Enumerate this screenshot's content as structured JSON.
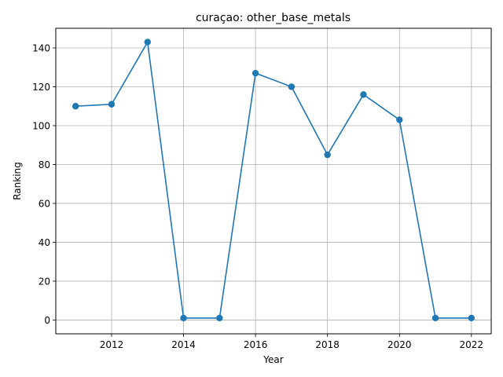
{
  "chart_data": {
    "type": "line",
    "title": "curaçao: other_base_metals",
    "xlabel": "Year",
    "ylabel": "Ranking",
    "x": [
      2011,
      2012,
      2013,
      2014,
      2015,
      2016,
      2017,
      2018,
      2019,
      2020,
      2021,
      2022
    ],
    "series": [
      {
        "values": [
          110,
          111,
          143,
          1,
          1,
          127,
          120,
          85,
          116,
          103,
          1,
          1
        ]
      }
    ],
    "xlim": [
      2010.45,
      2022.55
    ],
    "ylim": [
      -7.1,
      150.1
    ],
    "xticks": [
      2012,
      2014,
      2016,
      2018,
      2020,
      2022
    ],
    "xtick_labels": [
      "2012",
      "2014",
      "2016",
      "2018",
      "2020",
      "2022"
    ],
    "yticks": [
      0,
      20,
      40,
      60,
      80,
      100,
      120,
      140
    ],
    "ytick_labels": [
      "0",
      "20",
      "40",
      "60",
      "80",
      "100",
      "120",
      "140"
    ],
    "grid": true,
    "color": "#1f77b4"
  }
}
